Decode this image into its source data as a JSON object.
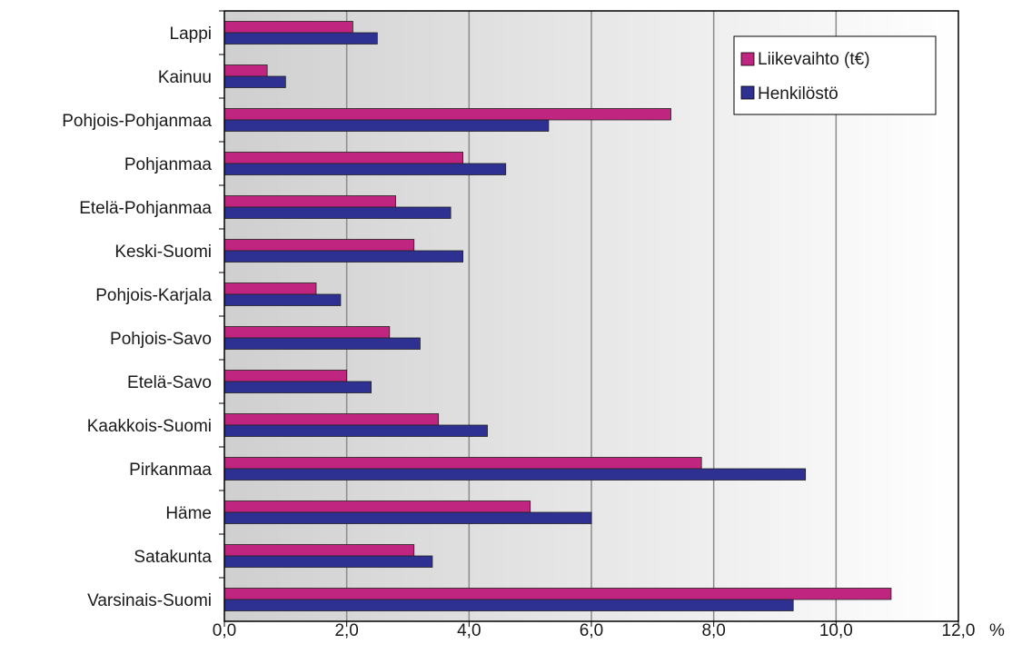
{
  "chart_data": {
    "type": "bar",
    "orientation": "horizontal",
    "categories": [
      "Lappi",
      "Kainuu",
      "Pohjois-Pohjanmaa",
      "Pohjanmaa",
      "Etelä-Pohjanmaa",
      "Keski-Suomi",
      "Pohjois-Karjala",
      "Pohjois-Savo",
      "Etelä-Savo",
      "Kaakkois-Suomi",
      "Pirkanmaa",
      "Häme",
      "Satakunta",
      "Varsinais-Suomi"
    ],
    "series": [
      {
        "name": "Liikevaihto (t€)",
        "color": "#c0267f",
        "values": [
          2.1,
          0.7,
          7.3,
          3.9,
          2.8,
          3.1,
          1.5,
          2.7,
          2.0,
          3.5,
          7.8,
          5.0,
          3.1,
          10.9
        ]
      },
      {
        "name": "Henkilöstö",
        "color": "#2e3192",
        "values": [
          2.5,
          1.0,
          5.3,
          4.6,
          3.7,
          3.9,
          1.9,
          3.2,
          2.4,
          4.3,
          9.5,
          6.0,
          3.4,
          9.3
        ]
      }
    ],
    "x_ticks": [
      "0,0",
      "2,0",
      "4,0",
      "6,0",
      "8,0",
      "10,0",
      "12,0"
    ],
    "x_unit": "%",
    "xlim": [
      0,
      12
    ],
    "grid": true,
    "legend_position": "top-right"
  }
}
